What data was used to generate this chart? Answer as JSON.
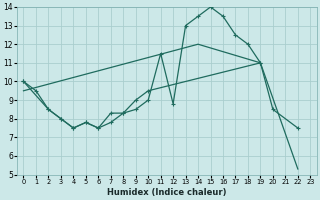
{
  "xlabel": "Humidex (Indice chaleur)",
  "background_color": "#cce8e8",
  "grid_color": "#aacece",
  "line_color": "#1f6b5e",
  "xlim": [
    -0.5,
    23.5
  ],
  "ylim": [
    5,
    14
  ],
  "xticks": [
    0,
    1,
    2,
    3,
    4,
    5,
    6,
    7,
    8,
    9,
    10,
    11,
    12,
    13,
    14,
    15,
    16,
    17,
    18,
    19,
    20,
    21,
    22,
    23
  ],
  "yticks": [
    5,
    6,
    7,
    8,
    9,
    10,
    11,
    12,
    13,
    14
  ],
  "series1_x": [
    0,
    1,
    2,
    3,
    4,
    5,
    6,
    7,
    8,
    9,
    10,
    11,
    12,
    13,
    14,
    15,
    16,
    17,
    18,
    19,
    20,
    22
  ],
  "series1_y": [
    10,
    9.5,
    8.5,
    8.0,
    7.5,
    7.8,
    7.5,
    7.8,
    8.3,
    8.5,
    9.0,
    11.5,
    8.8,
    13.0,
    13.5,
    14.0,
    13.5,
    12.5,
    12.0,
    11.0,
    8.5,
    7.5
  ],
  "series2_x": [
    0,
    2,
    3,
    4,
    5,
    6,
    7,
    8,
    9,
    10,
    19
  ],
  "series2_y": [
    10,
    8.5,
    8.0,
    7.5,
    7.8,
    7.5,
    8.3,
    8.3,
    9.0,
    9.5,
    11.0
  ],
  "series3_x": [
    0,
    14,
    19,
    22
  ],
  "series3_y": [
    9.5,
    12.0,
    11.0,
    5.3
  ]
}
